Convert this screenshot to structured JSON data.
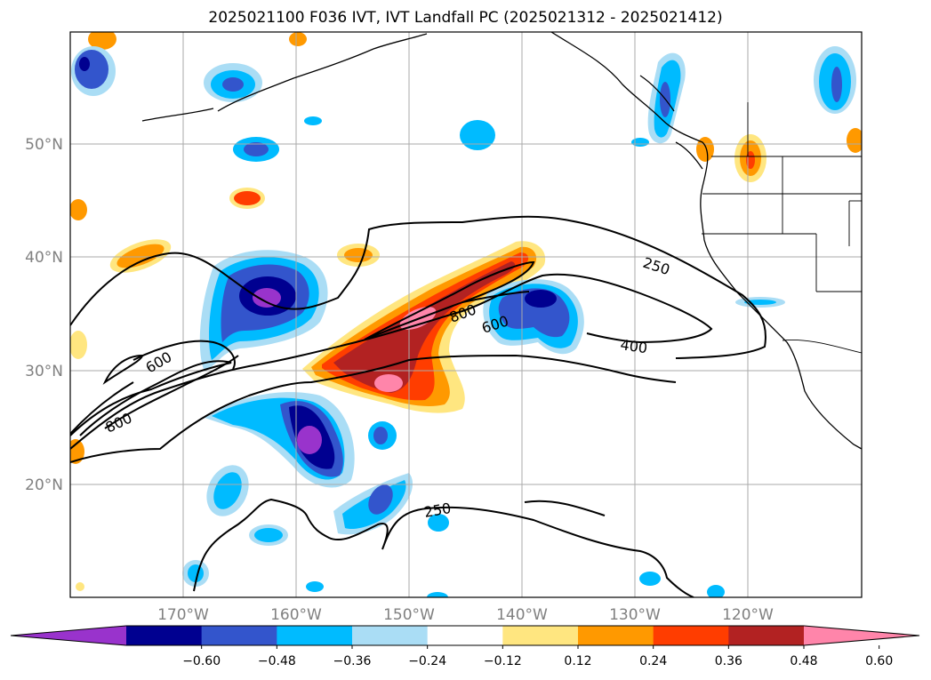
{
  "title": "2025021100 F036 IVT, IVT Landfall PC (2025021312 - 2025021412)",
  "map": {
    "lon_labels": [
      "170°W",
      "160°W",
      "150°W",
      "140°W",
      "130°W",
      "120°W"
    ],
    "lat_labels": [
      "50°N",
      "40°N",
      "30°N",
      "20°N"
    ],
    "ivt_contour_labels": [
      "250",
      "400",
      "600",
      "800",
      "800",
      "600",
      "250"
    ]
  },
  "colorbar": {
    "ticks": [
      "−0.60",
      "−0.48",
      "−0.36",
      "−0.24",
      "−0.12",
      "0.12",
      "0.24",
      "0.36",
      "0.48",
      "0.60"
    ],
    "colors": [
      "#9933cc",
      "#000090",
      "#3355cc",
      "#00bbff",
      "#aaddf5",
      "#ffffff",
      "#ffe680",
      "#ff9900",
      "#ff3d00",
      "#b22222",
      "#ff85aa"
    ]
  }
}
